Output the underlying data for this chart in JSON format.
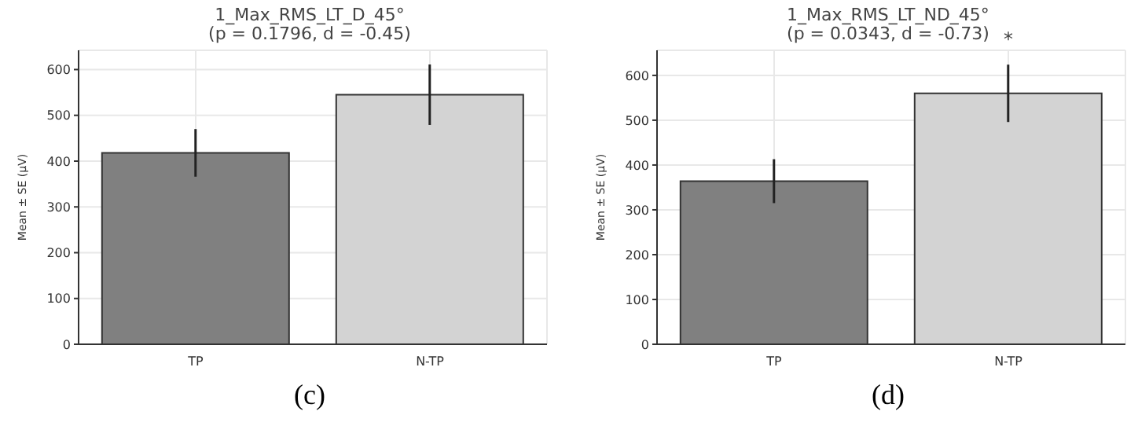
{
  "chart_data": [
    {
      "type": "bar",
      "title": "1_Max_RMS_LT_D_45°",
      "subtitle": "(p = 0.1796, d = -0.45)",
      "ylabel": "Mean ± SE (µV)",
      "categories": [
        "TP",
        "N-TP"
      ],
      "values": [
        418,
        545
      ],
      "errors": [
        52,
        66
      ],
      "colors": [
        "#808080",
        "#d3d3d3"
      ],
      "ylim": [
        0,
        642
      ],
      "yticks": [
        0,
        100,
        200,
        300,
        400,
        500,
        600
      ],
      "grid": true,
      "annotations": [
        "(c)"
      ]
    },
    {
      "type": "bar",
      "title": "1_Max_RMS_LT_ND_45°",
      "subtitle": "(p = 0.0343, d = -0.73)",
      "ylabel": "Mean ± SE (µV)",
      "categories": [
        "TP",
        "N-TP"
      ],
      "values": [
        364,
        560
      ],
      "errors": [
        49,
        64
      ],
      "colors": [
        "#808080",
        "#d3d3d3"
      ],
      "ylim": [
        0,
        656
      ],
      "yticks": [
        0,
        100,
        200,
        300,
        400,
        500,
        600
      ],
      "grid": true,
      "annotations": [
        "*",
        "(d)"
      ]
    }
  ]
}
